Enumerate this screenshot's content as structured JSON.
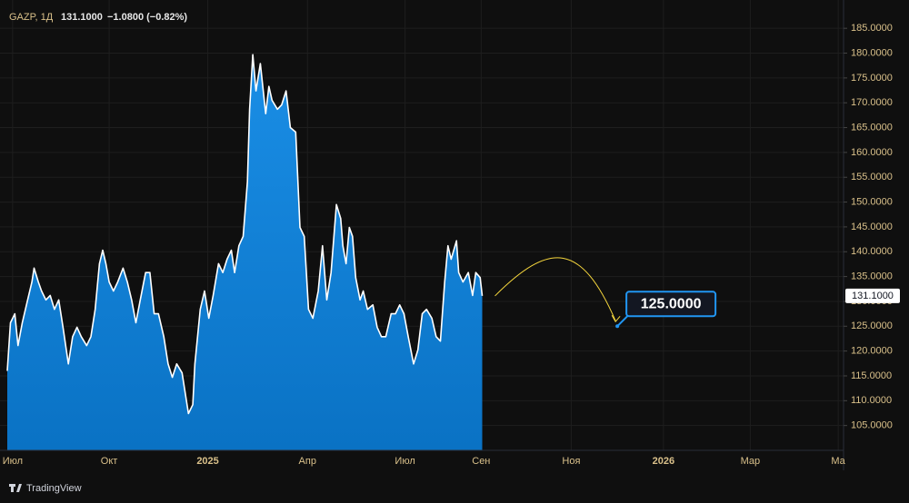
{
  "chart_data": {
    "type": "area",
    "header": {
      "symbol": "GAZP, 1Д",
      "price": "131.1000",
      "change": "−1.0800 (−0.82%)"
    },
    "x": [
      -5,
      -2,
      2,
      5,
      9,
      14,
      18,
      20,
      24,
      27,
      31,
      35,
      39,
      43,
      47,
      52,
      56,
      60,
      64,
      69,
      73,
      77,
      81,
      84,
      87,
      90,
      94,
      98,
      103,
      107,
      111,
      115,
      119,
      124,
      128,
      132,
      136,
      141,
      145,
      149,
      153,
      158,
      162,
      164,
      168,
      170,
      175,
      179,
      183,
      187,
      192,
      196,
      200,
      204,
      207,
      211,
      215,
      219,
      221,
      224,
      227,
      231,
      236,
      239,
      242,
      247,
      251,
      255,
      259,
      264,
      268,
      272,
      276,
      280,
      285,
      289,
      293,
      297,
      302,
      306,
      308,
      311,
      314,
      317,
      320,
      324,
      327,
      331,
      336,
      340,
      344,
      348,
      353,
      357,
      361,
      365,
      369,
      374,
      378,
      382,
      386,
      391,
      395,
      399,
      403,
      406,
      409,
      414,
      416,
      420,
      425,
      429,
      432,
      436,
      438
    ],
    "series": [
      {
        "name": "GAZP",
        "color": "#ffffff",
        "fill": "#0b7fd4",
        "values": [
          116.0,
          125.7,
          127.5,
          121.1,
          125.7,
          130.3,
          133.9,
          136.7,
          133.9,
          132.1,
          130.3,
          131.2,
          128.4,
          130.3,
          124.8,
          117.4,
          122.9,
          124.8,
          122.9,
          121.1,
          122.9,
          128.4,
          137.6,
          140.3,
          137.6,
          133.9,
          132.1,
          133.9,
          136.7,
          133.9,
          130.3,
          125.7,
          130.3,
          135.8,
          135.8,
          127.5,
          127.5,
          122.9,
          117.4,
          114.7,
          117.4,
          115.6,
          110.1,
          107.4,
          109.2,
          117.4,
          128.4,
          132.1,
          126.6,
          131.2,
          137.6,
          135.8,
          138.5,
          140.3,
          135.8,
          141.2,
          143.1,
          154.1,
          168.7,
          179.7,
          172.4,
          177.9,
          167.8,
          173.3,
          170.5,
          168.7,
          169.6,
          172.4,
          165.0,
          164.1,
          144.9,
          143.1,
          128.4,
          126.6,
          132.1,
          141.2,
          130.3,
          135.8,
          149.5,
          146.7,
          141.2,
          137.6,
          144.9,
          143.1,
          134.8,
          130.3,
          132.1,
          128.4,
          129.3,
          124.8,
          122.9,
          122.9,
          127.5,
          127.5,
          129.3,
          127.5,
          122.9,
          117.4,
          120.2,
          127.5,
          128.4,
          126.6,
          122.9,
          122.0,
          133.9,
          141.2,
          138.5,
          142.2,
          135.8,
          133.9,
          135.8,
          131.2,
          135.8,
          134.8,
          131.1
        ]
      }
    ],
    "xlim": [
      -5,
      775
    ],
    "xticks": [
      {
        "value": 0,
        "label": "Июл"
      },
      {
        "value": 90,
        "label": "Окт"
      },
      {
        "value": 182,
        "label": "2025"
      },
      {
        "value": 275,
        "label": "Апр"
      },
      {
        "value": 366,
        "label": "Июл"
      },
      {
        "value": 437,
        "label": "Сен"
      },
      {
        "value": 521,
        "label": "Ноя"
      },
      {
        "value": 607,
        "label": "2026"
      },
      {
        "value": 688,
        "label": "Мар"
      },
      {
        "value": 770,
        "label": "Ма"
      }
    ],
    "ylim": [
      100,
      190.7
    ],
    "yticks": [
      {
        "value": 105,
        "label": "105.0000"
      },
      {
        "value": 110,
        "label": "110.0000"
      },
      {
        "value": 115,
        "label": "115.0000"
      },
      {
        "value": 120,
        "label": "120.0000"
      },
      {
        "value": 125,
        "label": "125.0000"
      },
      {
        "value": 130,
        "label": "130.0000"
      },
      {
        "value": 135,
        "label": "135.0000"
      },
      {
        "value": 140,
        "label": "140.0000"
      },
      {
        "value": 145,
        "label": "145.0000"
      },
      {
        "value": 150,
        "label": "150.0000"
      },
      {
        "value": 155,
        "label": "155.0000"
      },
      {
        "value": 160,
        "label": "160.0000"
      },
      {
        "value": 165,
        "label": "165.0000"
      },
      {
        "value": 170,
        "label": "170.0000"
      },
      {
        "value": 175,
        "label": "175.0000"
      },
      {
        "value": 180,
        "label": "180.0000"
      },
      {
        "value": 185,
        "label": "185.0000"
      }
    ],
    "grid": true,
    "last_price": {
      "value": 131.1,
      "label": "131.1000"
    },
    "annotation": {
      "x": 564,
      "value": 125,
      "label": "125.0000",
      "color": "#2196f3",
      "arrow_color": "#f5d63d"
    }
  },
  "footer": {
    "brand": "TradingView"
  }
}
